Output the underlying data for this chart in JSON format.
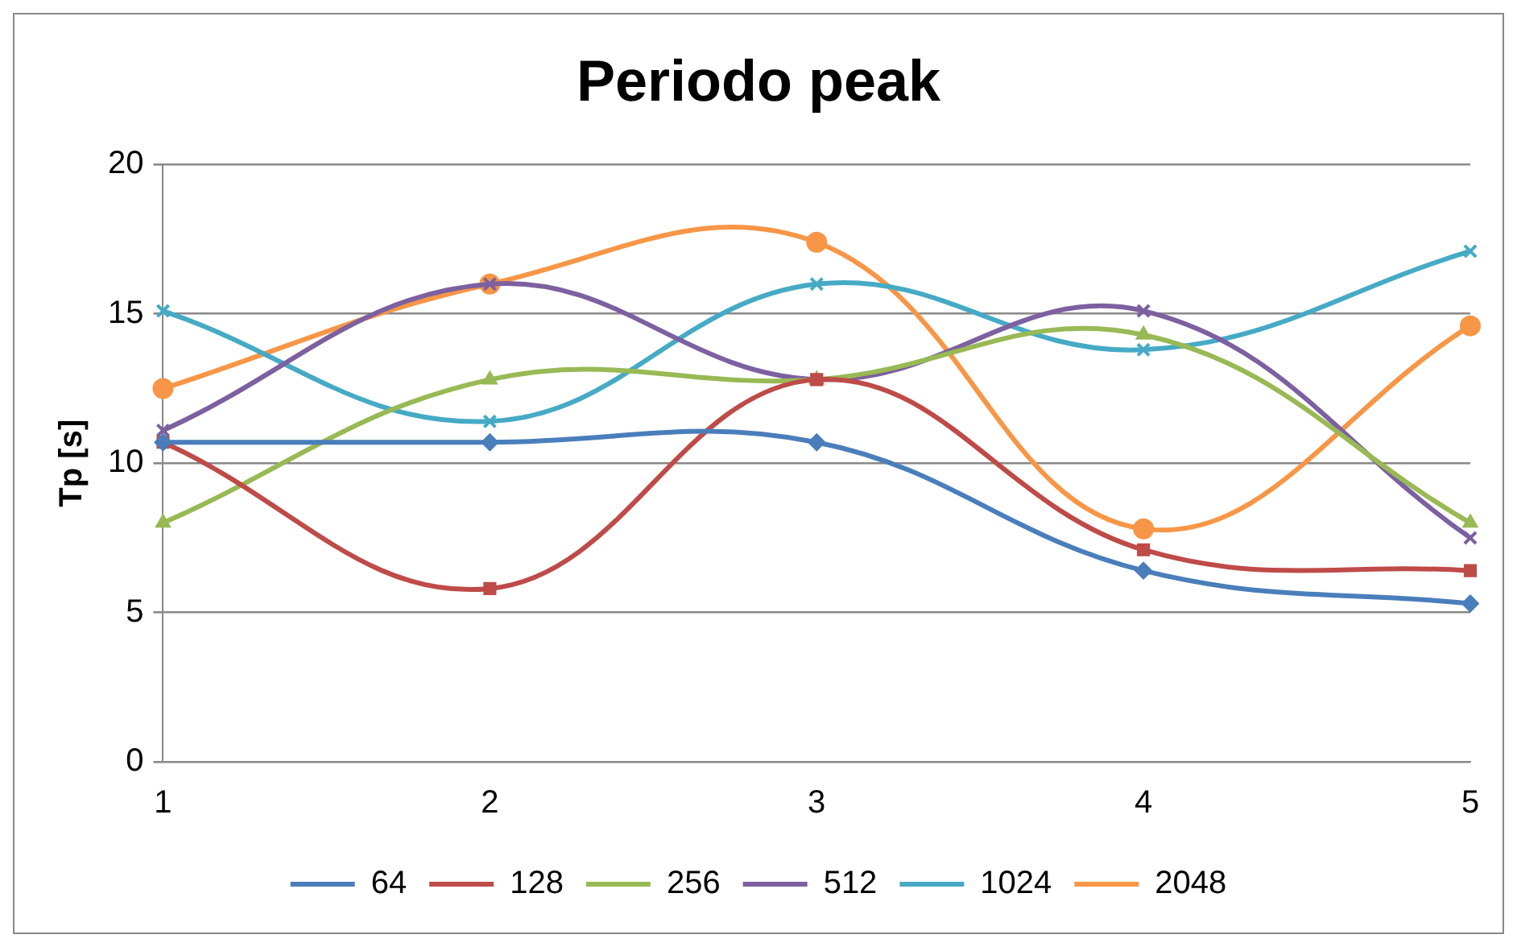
{
  "chart_data": {
    "type": "line",
    "title": "Periodo peak",
    "ylabel": "Tp [s]",
    "categories": [
      "1",
      "2",
      "3",
      "4",
      "5"
    ],
    "ylim": [
      0,
      20
    ],
    "yticks": [
      0,
      5,
      10,
      15,
      20
    ],
    "grid": "y",
    "legend": "bottom",
    "line_style": "solid",
    "series": [
      {
        "name": "64",
        "color": "#4a7ebb",
        "marker": "diamond",
        "values": [
          10.7,
          10.7,
          10.7,
          6.4,
          5.3
        ]
      },
      {
        "name": "128",
        "color": "#be4b48",
        "marker": "square",
        "values": [
          10.7,
          5.8,
          12.8,
          7.1,
          6.4
        ]
      },
      {
        "name": "256",
        "color": "#98b954",
        "marker": "triangle",
        "values": [
          8.0,
          12.8,
          12.8,
          14.3,
          8.0
        ]
      },
      {
        "name": "512",
        "color": "#7d60a0",
        "marker": "cross",
        "values": [
          11.1,
          16.0,
          12.8,
          15.1,
          7.5
        ]
      },
      {
        "name": "1024",
        "color": "#46aac5",
        "marker": "cross",
        "values": [
          15.1,
          11.4,
          16.0,
          13.8,
          17.1
        ]
      },
      {
        "name": "2048",
        "color": "#f79646",
        "marker": "circle",
        "values": [
          12.5,
          16.0,
          17.4,
          7.8,
          14.6
        ]
      }
    ]
  }
}
